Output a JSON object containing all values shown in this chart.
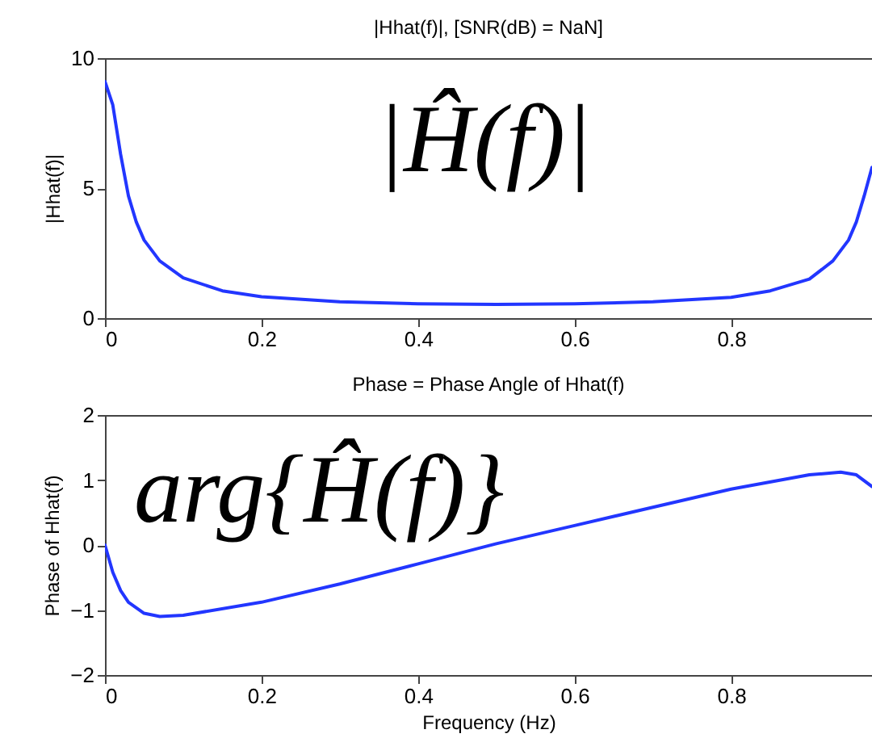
{
  "chart_data": [
    {
      "type": "line",
      "title": "|Hhat(f)|, [SNR(dB) = NaN]",
      "ylabel": "|Hhat(f)|",
      "annotations": [
        "|Ĥ(f)|"
      ],
      "xlim": [
        0,
        0.98
      ],
      "xticks": [
        0,
        0.2,
        0.4,
        0.6,
        0.8
      ],
      "ylim": [
        0,
        10
      ],
      "yticks": [
        0,
        5,
        10
      ],
      "x": [
        0,
        0.01,
        0.02,
        0.03,
        0.04,
        0.05,
        0.07,
        0.1,
        0.15,
        0.2,
        0.3,
        0.4,
        0.5,
        0.6,
        0.7,
        0.8,
        0.85,
        0.9,
        0.93,
        0.95,
        0.96,
        0.97,
        0.98
      ],
      "series": [
        {
          "color": "#2236ff",
          "values": [
            9.1,
            8.2,
            6.3,
            4.7,
            3.7,
            3.0,
            2.2,
            1.55,
            1.05,
            0.82,
            0.63,
            0.55,
            0.53,
            0.55,
            0.63,
            0.8,
            1.05,
            1.5,
            2.2,
            3.0,
            3.7,
            4.7,
            5.8
          ]
        }
      ]
    },
    {
      "type": "line",
      "title": "Phase = Phase Angle of Hhat(f)",
      "xlabel": "Frequency (Hz)",
      "ylabel": "Phase of Hhat(f)",
      "annotations": [
        "arg{Ĥ(f)}"
      ],
      "xlim": [
        0,
        0.98
      ],
      "xticks": [
        0,
        0.2,
        0.4,
        0.6,
        0.8
      ],
      "ylim": [
        -2,
        2
      ],
      "yticks": [
        -2,
        -1,
        0,
        1,
        2
      ],
      "x": [
        0,
        0.01,
        0.02,
        0.03,
        0.05,
        0.07,
        0.1,
        0.2,
        0.3,
        0.4,
        0.5,
        0.6,
        0.7,
        0.8,
        0.9,
        0.94,
        0.96,
        0.98
      ],
      "series": [
        {
          "color": "#2236ff",
          "values": [
            0,
            -0.42,
            -0.7,
            -0.88,
            -1.05,
            -1.1,
            -1.08,
            -0.88,
            -0.6,
            -0.29,
            0.02,
            0.3,
            0.58,
            0.86,
            1.08,
            1.12,
            1.08,
            0.9
          ]
        }
      ]
    }
  ]
}
